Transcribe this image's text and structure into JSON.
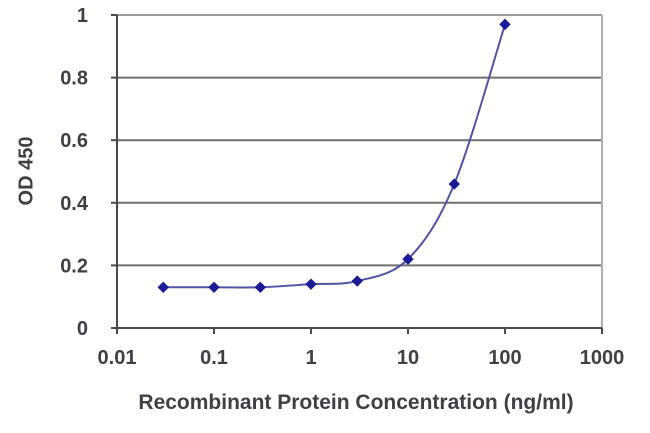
{
  "chart_data": {
    "type": "line",
    "title": "",
    "xlabel": "Recombinant Protein Concentration (ng/ml)",
    "ylabel": "OD 450",
    "x_scale": "log",
    "x": [
      0.03,
      0.1,
      0.3,
      1,
      3,
      10,
      30,
      100
    ],
    "y": [
      0.13,
      0.13,
      0.13,
      0.14,
      0.15,
      0.22,
      0.46,
      0.97
    ],
    "series": [
      {
        "name": "OD 450",
        "x": [
          0.03,
          0.1,
          0.3,
          1,
          3,
          10,
          30,
          100
        ],
        "values": [
          0.13,
          0.13,
          0.13,
          0.14,
          0.15,
          0.22,
          0.46,
          0.97
        ]
      }
    ],
    "x_ticks": [
      "0.01",
      "0.1",
      "1",
      "10",
      "100",
      "1000"
    ],
    "x_tick_values": [
      0.01,
      0.1,
      1,
      10,
      100,
      1000
    ],
    "y_ticks": [
      "0",
      "0.2",
      "0.4",
      "0.6",
      "0.8",
      "1"
    ],
    "y_tick_values": [
      0,
      0.2,
      0.4,
      0.6,
      0.8,
      1
    ],
    "xlim": [
      0.01,
      1000
    ],
    "ylim": [
      0,
      1
    ],
    "grid": "horizontal",
    "legend": "none",
    "marker": "diamond",
    "smooth_line": true,
    "colors": {
      "line": "#5153a3",
      "marker": "#1b1b96",
      "gridline": "#6f6f6f",
      "top_gridline": "#9a9a9a",
      "frame": "#b0b0b0",
      "axis": "#4a4a4a",
      "text": "#3f3f46",
      "background": "#ffffff"
    }
  }
}
